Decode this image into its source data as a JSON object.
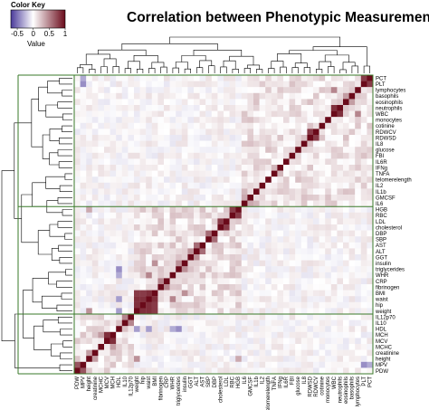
{
  "chart_data": {
    "type": "heatmap",
    "title": "Correlation between Phenotypic Measurements",
    "color_key": {
      "label": "Color Key",
      "value_label": "Value",
      "ticks": [
        "-0.5",
        "0",
        "0.5",
        "1"
      ],
      "range": [
        -0.7,
        1.0
      ],
      "colors": {
        "negative": "#4a3a9a",
        "zero": "#ffffff",
        "positive": "#6a0a1a"
      }
    },
    "row_labels": [
      "PCT",
      "PLT",
      "lymphocytes",
      "basophils",
      "eosinophils",
      "neutrophils",
      "WBC",
      "monocytes",
      "cotinine",
      "RDWCV",
      "RDWSD",
      "IL8",
      "glucose",
      "FBI",
      "IL6R",
      "IFNg",
      "TNFA",
      "telomerelength",
      "IL2",
      "IL1b",
      "GMCSF",
      "IL6",
      "HGB",
      "RBC",
      "LDL",
      "cholesterol",
      "DBP",
      "SBP",
      "AST",
      "ALT",
      "GGT",
      "insulin",
      "triglycerides",
      "WHR",
      "CRP",
      "fibrinogen",
      "BMI",
      "waist",
      "hip",
      "weight",
      "IL12p70",
      "IL10",
      "HDL",
      "MCH",
      "MCV",
      "MCHC",
      "creatinine",
      "height",
      "MPV",
      "PDW"
    ],
    "col_labels": [
      "PDW",
      "MPV",
      "height",
      "creatinine",
      "MCHC",
      "MCV",
      "MCH",
      "HDL",
      "IL10",
      "IL12p70",
      "weight",
      "hip",
      "waist",
      "BMI",
      "fibrinogen",
      "CRP",
      "WHR",
      "triglycerides",
      "insulin",
      "GGT",
      "ALT",
      "AST",
      "SBP",
      "DBP",
      "cholesterol",
      "LDL",
      "RBC",
      "HGB",
      "IL6",
      "GMCSF",
      "IL1b",
      "IL2",
      "telomerelength",
      "TNFA",
      "IFNg",
      "IL6R",
      "FBI",
      "glucose",
      "IL8",
      "RDWSD",
      "RDWCV",
      "cotinine",
      "monocytes",
      "WBC",
      "neutrophils",
      "eosinophils",
      "basophils",
      "lymphocytes",
      "PLT",
      "PCT"
    ],
    "diagonal": 1.0,
    "clusters": [
      {
        "rows": [
          0,
          21
        ]
      },
      {
        "rows": [
          22,
          39
        ]
      },
      {
        "rows": [
          40,
          49
        ]
      }
    ],
    "strong_correlations": [
      {
        "a": "weight",
        "b": "hip",
        "value": 0.85
      },
      {
        "a": "weight",
        "b": "waist",
        "value": 0.85
      },
      {
        "a": "weight",
        "b": "BMI",
        "value": 0.8
      },
      {
        "a": "hip",
        "b": "waist",
        "value": 0.85
      },
      {
        "a": "hip",
        "b": "BMI",
        "value": 0.8
      },
      {
        "a": "waist",
        "b": "BMI",
        "value": 0.85
      },
      {
        "a": "HGB",
        "b": "RBC",
        "value": 0.8
      },
      {
        "a": "cholesterol",
        "b": "LDL",
        "value": 0.8
      },
      {
        "a": "AST",
        "b": "ALT",
        "value": 0.6
      },
      {
        "a": "SBP",
        "b": "DBP",
        "value": 0.6
      },
      {
        "a": "MCH",
        "b": "MCV",
        "value": 0.85
      },
      {
        "a": "RDWCV",
        "b": "RDWSD",
        "value": 0.8
      },
      {
        "a": "neutrophils",
        "b": "WBC",
        "value": 0.85
      },
      {
        "a": "PLT",
        "b": "PCT",
        "value": 0.8
      },
      {
        "a": "MPV",
        "b": "PDW",
        "value": 0.7
      },
      {
        "a": "lymphocytes",
        "b": "WBC",
        "value": 0.5
      },
      {
        "a": "basophils",
        "b": "eosinophils",
        "value": 0.4
      },
      {
        "a": "triglycerides",
        "b": "insulin",
        "value": 0.45
      },
      {
        "a": "WHR",
        "b": "waist",
        "value": 0.5
      },
      {
        "a": "IL12p70",
        "b": "IL10",
        "value": 0.5
      },
      {
        "a": "GGT",
        "b": "ALT",
        "value": 0.45
      },
      {
        "a": "CRP",
        "b": "fibrinogen",
        "value": 0.5
      },
      {
        "a": "insulin",
        "b": "BMI",
        "value": 0.45
      },
      {
        "a": "HDL",
        "b": "triglycerides",
        "value": -0.4
      },
      {
        "a": "HDL",
        "b": "weight",
        "value": -0.35
      },
      {
        "a": "HDL",
        "b": "waist",
        "value": -0.35
      },
      {
        "a": "HDL",
        "b": "WHR",
        "value": -0.3
      },
      {
        "a": "MPV",
        "b": "PLT",
        "value": -0.4
      },
      {
        "a": "MPV",
        "b": "PCT",
        "value": -0.3
      },
      {
        "a": "height",
        "b": "weight",
        "value": 0.45
      },
      {
        "a": "height",
        "b": "HGB",
        "value": 0.35
      },
      {
        "a": "creatinine",
        "b": "height",
        "value": 0.4
      },
      {
        "a": "MCHC",
        "b": "MCH",
        "value": 0.4
      },
      {
        "a": "IL6",
        "b": "GMCSF",
        "value": 0.35
      },
      {
        "a": "IL6",
        "b": "IL1b",
        "value": 0.3
      },
      {
        "a": "TNFA",
        "b": "IFNg",
        "value": 0.3
      }
    ]
  }
}
